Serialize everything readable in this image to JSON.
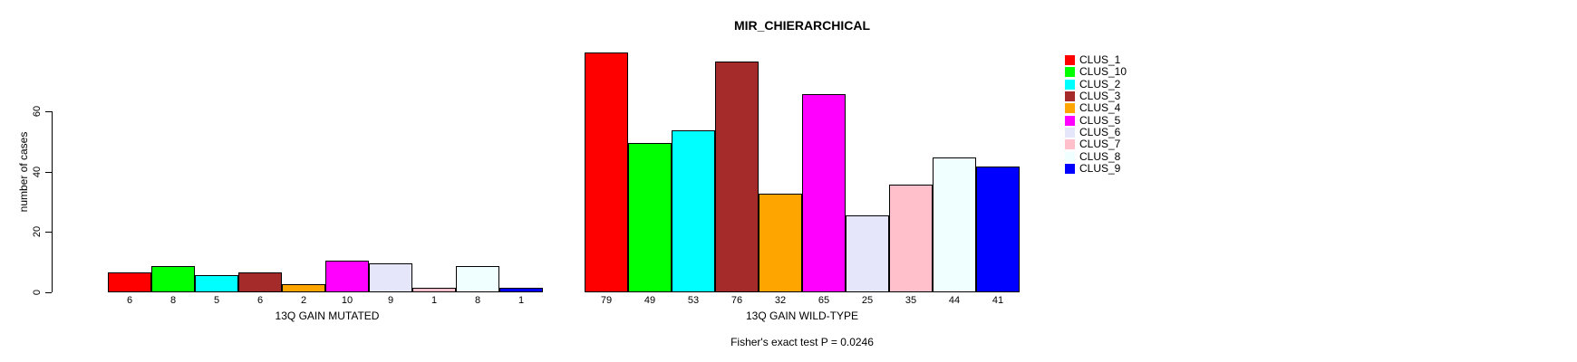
{
  "title": "MIR_CHIERARCHICAL",
  "y_axis": {
    "label": "number of cases",
    "ticks": [
      0,
      20,
      40,
      60
    ]
  },
  "footer": {
    "text": "Fisher's exact test P = 0.0246"
  },
  "legend": {
    "items": [
      {
        "label": "CLUS_1",
        "color": "#FF0000"
      },
      {
        "label": "CLUS_10",
        "color": "#00FF00"
      },
      {
        "label": "CLUS_2",
        "color": "#00FFFF"
      },
      {
        "label": "CLUS_3",
        "color": "#A52A2A"
      },
      {
        "label": "CLUS_4",
        "color": "#FFA500"
      },
      {
        "label": "CLUS_5",
        "color": "#FF00FF"
      },
      {
        "label": "CLUS_6",
        "color": "#E6E6FA"
      },
      {
        "label": "CLUS_7",
        "color": "#FFC0CB"
      },
      {
        "label": "CLUS_8",
        "color": "#F0FFFF"
      },
      {
        "label": "CLUS_9",
        "color": "#0000FF"
      }
    ]
  },
  "chart_data": [
    {
      "type": "bar",
      "title": "MIR_CHIERARCHICAL",
      "xlabel": "13Q GAIN MUTATED",
      "ylabel": "number of cases",
      "categories": [
        "CLUS_1",
        "CLUS_10",
        "CLUS_2",
        "CLUS_3",
        "CLUS_4",
        "CLUS_5",
        "CLUS_6",
        "CLUS_7",
        "CLUS_8",
        "CLUS_9"
      ],
      "values": [
        6,
        8,
        5,
        6,
        2,
        10,
        9,
        1,
        8,
        1
      ],
      "colors": [
        "#FF0000",
        "#00FF00",
        "#00FFFF",
        "#A52A2A",
        "#FFA500",
        "#FF00FF",
        "#E6E6FA",
        "#FFC0CB",
        "#F0FFFF",
        "#0000FF"
      ],
      "ylim": [
        0,
        79
      ],
      "yticks": [
        0,
        20,
        40,
        60
      ],
      "grid": false,
      "legend_position": "right"
    },
    {
      "type": "bar",
      "title": "MIR_CHIERARCHICAL",
      "xlabel": "13Q GAIN WILD-TYPE",
      "ylabel": "number of cases",
      "categories": [
        "CLUS_1",
        "CLUS_10",
        "CLUS_2",
        "CLUS_3",
        "CLUS_4",
        "CLUS_5",
        "CLUS_6",
        "CLUS_7",
        "CLUS_8",
        "CLUS_9"
      ],
      "values": [
        79,
        49,
        53,
        76,
        32,
        65,
        25,
        35,
        44,
        41
      ],
      "colors": [
        "#FF0000",
        "#00FF00",
        "#00FFFF",
        "#A52A2A",
        "#FFA500",
        "#FF00FF",
        "#E6E6FA",
        "#FFC0CB",
        "#F0FFFF",
        "#0000FF"
      ],
      "ylim": [
        0,
        79
      ],
      "yticks": [
        0,
        20,
        40,
        60
      ],
      "grid": false,
      "legend_position": "right"
    }
  ]
}
